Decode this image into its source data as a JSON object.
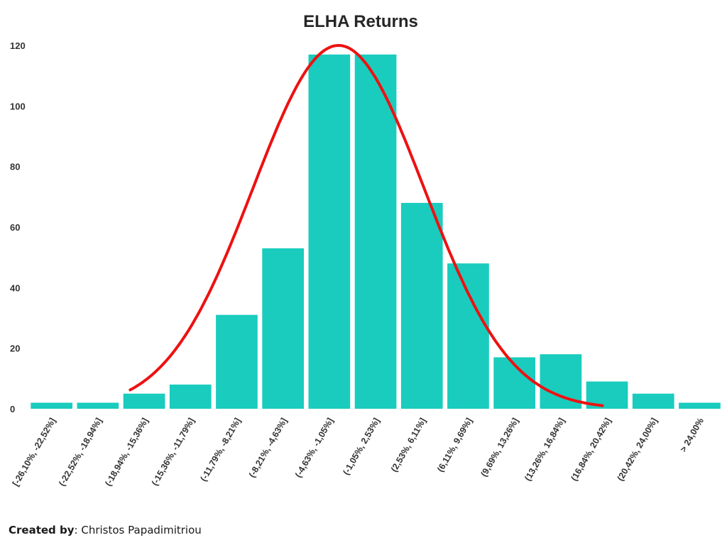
{
  "chart_data": {
    "type": "bar",
    "title": "ELHA Returns",
    "xlabel": "",
    "ylabel": "",
    "categories": [
      "[-26,10%, -22,52%]",
      "(-22,52%, -18,94%]",
      "(-18,94%, -15,36%]",
      "(-15,36%, -11,79%]",
      "(-11,79%, -8,21%]",
      "(-8,21%, -4,63%]",
      "(-4,63%, -1,05%]",
      "(-1,05%, 2,53%]",
      "(2,53%, 6,11%]",
      "(6,11%, 9,69%]",
      "(9,69%, 13,26%]",
      "(13,26%, 16,84%]",
      "(16,84%, 20,42%]",
      "(20,42%, 24,00%]",
      "> 24,00%"
    ],
    "values": [
      2,
      2,
      5,
      8,
      31,
      53,
      117,
      117,
      68,
      48,
      17,
      18,
      9,
      5,
      2
    ],
    "ylim": [
      0,
      120
    ],
    "yticks": [
      "0",
      "20",
      "40",
      "60",
      "80",
      "100",
      "120"
    ],
    "grid": false,
    "legend": "none",
    "curve": {
      "type": "normal-fit",
      "peak": 120,
      "center_category_index": 6.7,
      "sigma_categories": 1.85,
      "start_category_index": 2.2,
      "end_category_index": 12.4
    },
    "colors": {
      "bar": "#19ccbe",
      "curve": "#ee1111"
    }
  },
  "credit": {
    "label": "Created by",
    "separator": ": ",
    "name": "Christos Papadimitriou"
  }
}
